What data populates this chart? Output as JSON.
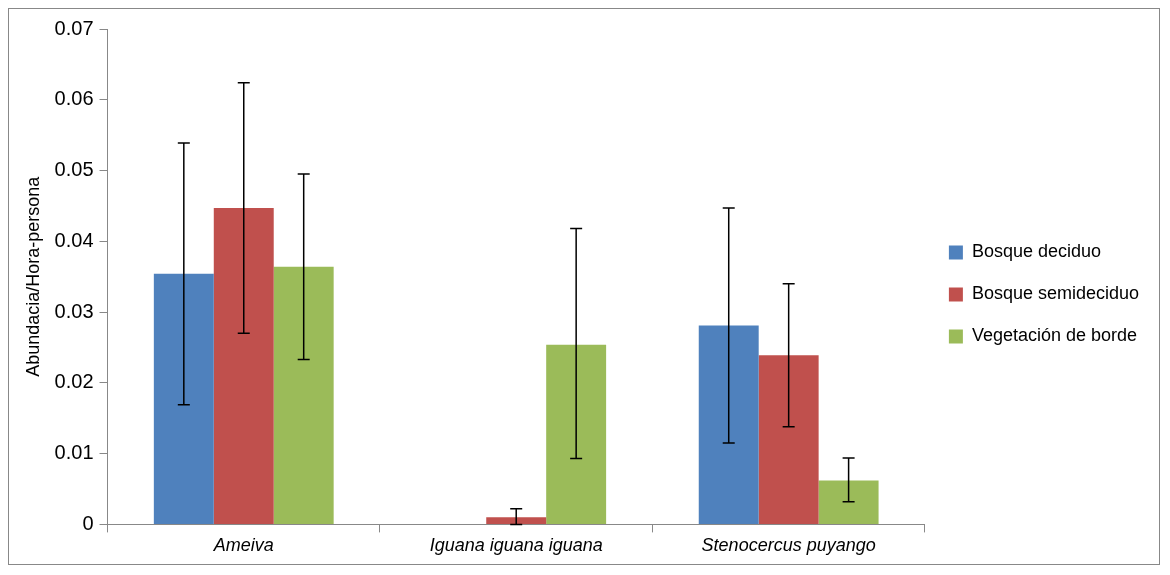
{
  "chart_data": {
    "type": "bar",
    "ylabel": "Abundacia/Hora-persona",
    "categories": [
      "Ameiva",
      "Iguana iguana iguana",
      "Stenocercus puyango"
    ],
    "series": [
      {
        "name": "Bosque deciduo",
        "color": "#4f81bd",
        "values": [
          0.0354,
          0,
          0.0281
        ],
        "errors": [
          [
            0.0169,
            0.0539
          ],
          null,
          [
            0.0115,
            0.0447
          ]
        ]
      },
      {
        "name": "Bosque semideciduo",
        "color": "#c0504d",
        "values": [
          0.0447,
          0.001,
          0.0239
        ],
        "errors": [
          [
            0.027,
            0.0624
          ],
          [
            0,
            0.0022
          ],
          [
            0.0138,
            0.034
          ]
        ]
      },
      {
        "name": "Vegetación de borde",
        "color": "#9bbb59",
        "values": [
          0.0364,
          0.0254,
          0.0062
        ],
        "errors": [
          [
            0.0233,
            0.0495
          ],
          [
            0.0093,
            0.0418
          ],
          [
            0.0032,
            0.0094
          ]
        ]
      }
    ],
    "ylim": [
      0,
      0.07
    ],
    "yticks": [
      0,
      0.01,
      0.02,
      0.03,
      0.04,
      0.05,
      0.06,
      0.07
    ],
    "grid": false,
    "legend": "right"
  }
}
